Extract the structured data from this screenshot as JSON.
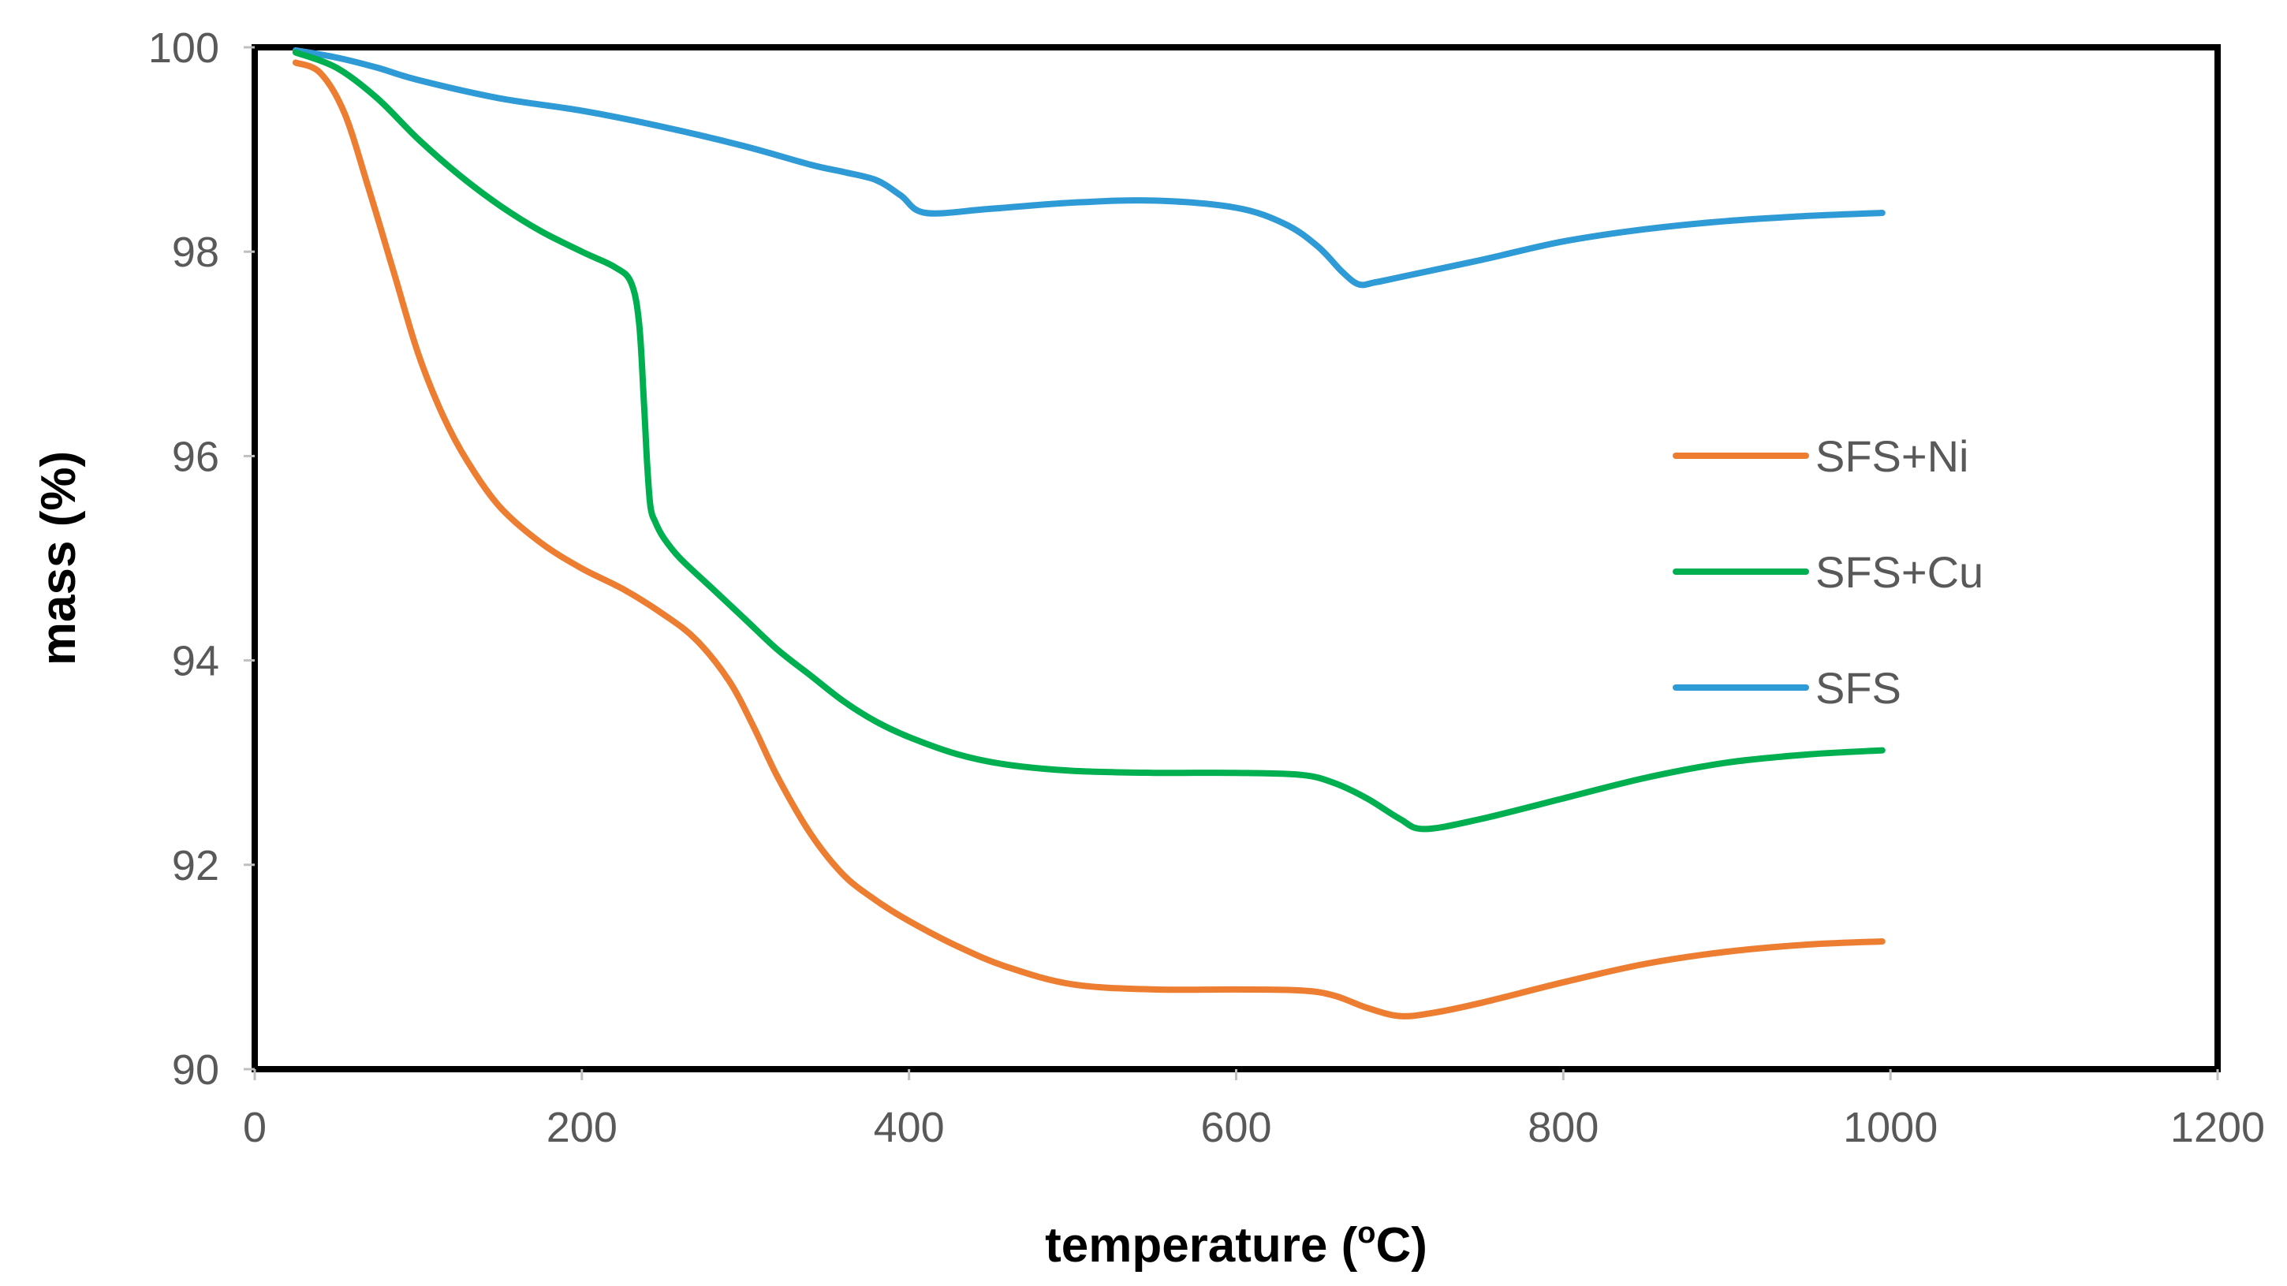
{
  "chart_data": {
    "type": "line",
    "title": "",
    "xlabel_main": "temperature (",
    "xlabel_sup": "o",
    "xlabel_end": "C)",
    "ylabel": "mass (%)",
    "xlim": [
      0,
      1200
    ],
    "ylim": [
      90,
      100
    ],
    "xticks": [
      0,
      200,
      400,
      600,
      800,
      1000,
      1200
    ],
    "yticks": [
      90,
      92,
      94,
      96,
      98,
      100
    ],
    "xtick_labels": [
      "0",
      "200",
      "400",
      "600",
      "800",
      "1000",
      "1200"
    ],
    "ytick_labels": [
      "90",
      "92",
      "94",
      "96",
      "98",
      "100"
    ],
    "grid": false,
    "legend_position": "right",
    "series": [
      {
        "name": "SFS+Ni",
        "color": "#ED7D31",
        "x": [
          25,
          40,
          55,
          70,
          85,
          100,
          115,
          130,
          150,
          175,
          200,
          225,
          250,
          270,
          290,
          305,
          320,
          340,
          360,
          380,
          400,
          430,
          460,
          500,
          550,
          600,
          640,
          660,
          680,
          700,
          720,
          750,
          800,
          850,
          900,
          950,
          995
        ],
        "y": [
          99.85,
          99.75,
          99.35,
          98.6,
          97.8,
          97.0,
          96.4,
          95.95,
          95.5,
          95.15,
          94.9,
          94.7,
          94.45,
          94.2,
          93.8,
          93.35,
          92.85,
          92.3,
          91.9,
          91.65,
          91.45,
          91.2,
          91.0,
          90.83,
          90.78,
          90.78,
          90.77,
          90.72,
          90.6,
          90.52,
          90.55,
          90.65,
          90.85,
          91.03,
          91.15,
          91.22,
          91.25
        ]
      },
      {
        "name": "SFS+Cu",
        "color": "#00B050",
        "x": [
          25,
          50,
          75,
          100,
          125,
          150,
          175,
          200,
          220,
          230,
          235,
          238,
          240,
          242,
          245,
          250,
          260,
          280,
          300,
          320,
          340,
          360,
          380,
          400,
          430,
          460,
          500,
          550,
          600,
          640,
          660,
          680,
          700,
          715,
          750,
          800,
          850,
          900,
          950,
          995
        ],
        "y": [
          99.95,
          99.8,
          99.5,
          99.1,
          98.75,
          98.45,
          98.2,
          98.0,
          97.85,
          97.7,
          97.3,
          96.5,
          95.9,
          95.5,
          95.35,
          95.2,
          95.0,
          94.7,
          94.4,
          94.1,
          93.85,
          93.6,
          93.4,
          93.25,
          93.08,
          92.98,
          92.92,
          92.9,
          92.9,
          92.88,
          92.8,
          92.65,
          92.45,
          92.35,
          92.45,
          92.65,
          92.85,
          93.0,
          93.08,
          93.12
        ]
      },
      {
        "name": "SFS",
        "color": "#2E9AD6",
        "x": [
          25,
          50,
          75,
          100,
          150,
          200,
          250,
          300,
          340,
          360,
          380,
          395,
          410,
          450,
          500,
          550,
          600,
          630,
          650,
          665,
          675,
          685,
          700,
          750,
          800,
          850,
          900,
          950,
          995
        ],
        "y": [
          99.97,
          99.9,
          99.8,
          99.68,
          99.5,
          99.38,
          99.22,
          99.03,
          98.85,
          98.78,
          98.7,
          98.55,
          98.38,
          98.42,
          98.48,
          98.5,
          98.43,
          98.27,
          98.05,
          97.8,
          97.68,
          97.7,
          97.75,
          97.92,
          98.1,
          98.22,
          98.3,
          98.35,
          98.38
        ]
      }
    ]
  }
}
